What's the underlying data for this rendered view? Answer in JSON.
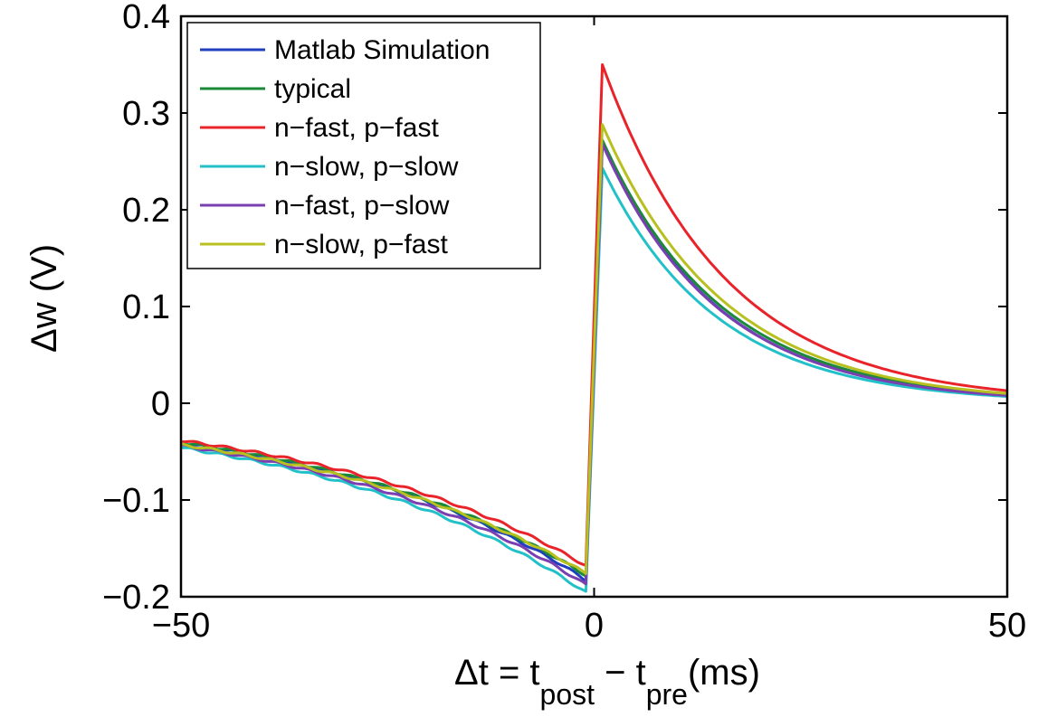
{
  "chart_data": {
    "type": "line",
    "title": "",
    "xlabel": {
      "prefix": "Δt = t",
      "sub1": "post",
      "mid": " − t",
      "sub2": "pre",
      "suffix": "(ms)"
    },
    "ylabel": "Δw (V)",
    "xlim": [
      -50,
      50
    ],
    "ylim": [
      -0.2,
      0.4
    ],
    "xticks": [
      -50,
      0,
      50
    ],
    "xtick_labels": [
      "−50",
      "0",
      "50"
    ],
    "yticks": [
      -0.2,
      -0.1,
      0,
      0.1,
      0.2,
      0.3,
      0.4
    ],
    "ytick_labels": [
      "−0.2",
      "−0.1",
      "0",
      "0.1",
      "0.2",
      "0.3",
      "0.4"
    ],
    "grid": false,
    "legend_position": "top-left",
    "series": [
      {
        "name": "Matlab Simulation",
        "color": "#1f3fbf",
        "pre_start": -0.04,
        "pre_end": -0.185,
        "post_peak": 0.27,
        "post_end": 0.008
      },
      {
        "name": "typical",
        "color": "#1a8a3a",
        "pre_start": -0.04,
        "pre_end": -0.18,
        "post_peak": 0.272,
        "post_end": 0.009
      },
      {
        "name": "n−fast, p−fast",
        "color": "#e8242a",
        "pre_start": -0.038,
        "pre_end": -0.17,
        "post_peak": 0.35,
        "post_end": 0.013
      },
      {
        "name": "n−slow, p−slow",
        "color": "#22c0c8",
        "pre_start": -0.045,
        "pre_end": -0.198,
        "post_peak": 0.243,
        "post_end": 0.007
      },
      {
        "name": "n−fast, p−slow",
        "color": "#7a3fb0",
        "pre_start": -0.043,
        "pre_end": -0.19,
        "post_peak": 0.268,
        "post_end": 0.008
      },
      {
        "name": "n−slow, p−fast",
        "color": "#b8c020",
        "pre_start": -0.042,
        "pre_end": -0.178,
        "post_peak": 0.288,
        "post_end": 0.01
      }
    ]
  }
}
